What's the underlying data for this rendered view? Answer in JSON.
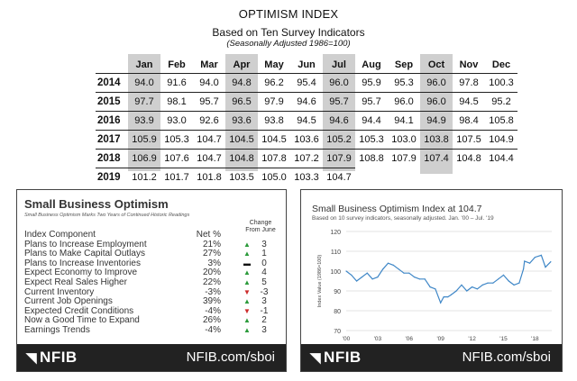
{
  "title": "OPTIMISM INDEX",
  "subtitle": "Based on Ten Survey Indicators",
  "note": "(Seasonally Adjusted 1986=100)",
  "months": [
    "Jan",
    "Feb",
    "Mar",
    "Apr",
    "May",
    "Jun",
    "Jul",
    "Aug",
    "Sep",
    "Oct",
    "Nov",
    "Dec"
  ],
  "rows": [
    {
      "year": "2014",
      "v": [
        "94.0",
        "91.6",
        "94.0",
        "94.8",
        "96.2",
        "95.4",
        "96.0",
        "95.9",
        "95.3",
        "96.0",
        "97.8",
        "100.3"
      ]
    },
    {
      "year": "2015",
      "v": [
        "97.7",
        "98.1",
        "95.7",
        "96.5",
        "97.9",
        "94.6",
        "95.7",
        "95.7",
        "96.0",
        "96.0",
        "94.5",
        "95.2"
      ]
    },
    {
      "year": "2016",
      "v": [
        "93.9",
        "93.0",
        "92.6",
        "93.6",
        "93.8",
        "94.5",
        "94.6",
        "94.4",
        "94.1",
        "94.9",
        "98.4",
        "105.8"
      ]
    },
    {
      "year": "2017",
      "v": [
        "105.9",
        "105.3",
        "104.7",
        "104.5",
        "104.5",
        "103.6",
        "105.2",
        "105.3",
        "103.0",
        "103.8",
        "107.5",
        "104.9"
      ]
    },
    {
      "year": "2018",
      "v": [
        "106.9",
        "107.6",
        "104.7",
        "104.8",
        "107.8",
        "107.2",
        "107.9",
        "108.8",
        "107.9",
        "107.4",
        "104.8",
        "104.4"
      ]
    },
    {
      "year": "2019",
      "v": [
        "101.2",
        "101.7",
        "101.8",
        "103.5",
        "105.0",
        "103.3",
        "104.7",
        "",
        "",
        "",
        "",
        ""
      ]
    }
  ],
  "left_panel": {
    "title": "Small Business Optimism",
    "subtitle": "Small Business Optimism Marks Two Years of Continued Historic Readings",
    "change_header_1": "Change",
    "change_header_2": "From June",
    "col_component": "Index Component",
    "col_net": "Net %",
    "components": [
      {
        "name": "Plans to Increase Employment",
        "net": "21%",
        "dir": "up",
        "arrow": "▲",
        "chg": "3"
      },
      {
        "name": "Plans to Make Capital Outlays",
        "net": "27%",
        "dir": "up",
        "arrow": "▲",
        "chg": "1"
      },
      {
        "name": "Plans to Increase Inventories",
        "net": "3%",
        "dir": "flat",
        "arrow": "▬",
        "chg": "0"
      },
      {
        "name": "Expect Economy to Improve",
        "net": "20%",
        "dir": "up",
        "arrow": "▲",
        "chg": "4"
      },
      {
        "name": "Expect Real Sales Higher",
        "net": "22%",
        "dir": "up",
        "arrow": "▲",
        "chg": "5"
      },
      {
        "name": "Current Inventory",
        "net": "-3%",
        "dir": "down",
        "arrow": "▼",
        "chg": "-3"
      },
      {
        "name": "Current Job Openings",
        "net": "39%",
        "dir": "up",
        "arrow": "▲",
        "chg": "3"
      },
      {
        "name": "Expected Credit Conditions",
        "net": "-4%",
        "dir": "down",
        "arrow": "▼",
        "chg": "-1"
      },
      {
        "name": "Now a Good Time to Expand",
        "net": "26%",
        "dir": "up",
        "arrow": "▲",
        "chg": "2"
      },
      {
        "name": "Earnings Trends",
        "net": "-4%",
        "dir": "up",
        "arrow": "▲",
        "chg": "3"
      }
    ],
    "brand": "NFIB",
    "url": "NFIB.com/sboi"
  },
  "right_panel": {
    "brand": "NFIB",
    "url": "NFIB.com/sboi"
  },
  "chart_data": {
    "type": "line",
    "title": "Small Business Optimism Index at 104.7",
    "subtitle": "Based on 10 survey indicators, seasonally adjusted. Jan. '00 – Jul. '19",
    "ylabel": "Index Value (1986=100)",
    "xlabel": "",
    "ylim": [
      70,
      120
    ],
    "yticks": [
      70,
      80,
      90,
      100,
      110,
      120
    ],
    "xticks": [
      "'00",
      "'03",
      "'06",
      "'09",
      "'12",
      "'15",
      "'18"
    ],
    "xlim": [
      2000,
      2019.6
    ],
    "color": "#3f87c7",
    "grid": true,
    "series": [
      {
        "x": [
          2000,
          2000.5,
          2001,
          2001.5,
          2002,
          2002.5,
          2003,
          2003.5,
          2004,
          2004.5,
          2005,
          2005.5,
          2006,
          2006.5,
          2007,
          2007.5,
          2008,
          2008.5,
          2009,
          2009.3,
          2009.7,
          2010,
          2010.5,
          2011,
          2011.5,
          2012,
          2012.5,
          2013,
          2013.5,
          2014,
          2014.5,
          2015,
          2015.5,
          2016,
          2016.5,
          2016.9,
          2017,
          2017.5,
          2018,
          2018.6,
          2019,
          2019.5
        ],
        "y": [
          100,
          98,
          95,
          97,
          99,
          96,
          97,
          101,
          104,
          103,
          101,
          99,
          99,
          97,
          96,
          96,
          92,
          91,
          84,
          87,
          87,
          88,
          90,
          93,
          90,
          92,
          91,
          93,
          94,
          94,
          96,
          98,
          95,
          93,
          94,
          101,
          105,
          104,
          107,
          108,
          102,
          104.7
        ]
      }
    ]
  }
}
